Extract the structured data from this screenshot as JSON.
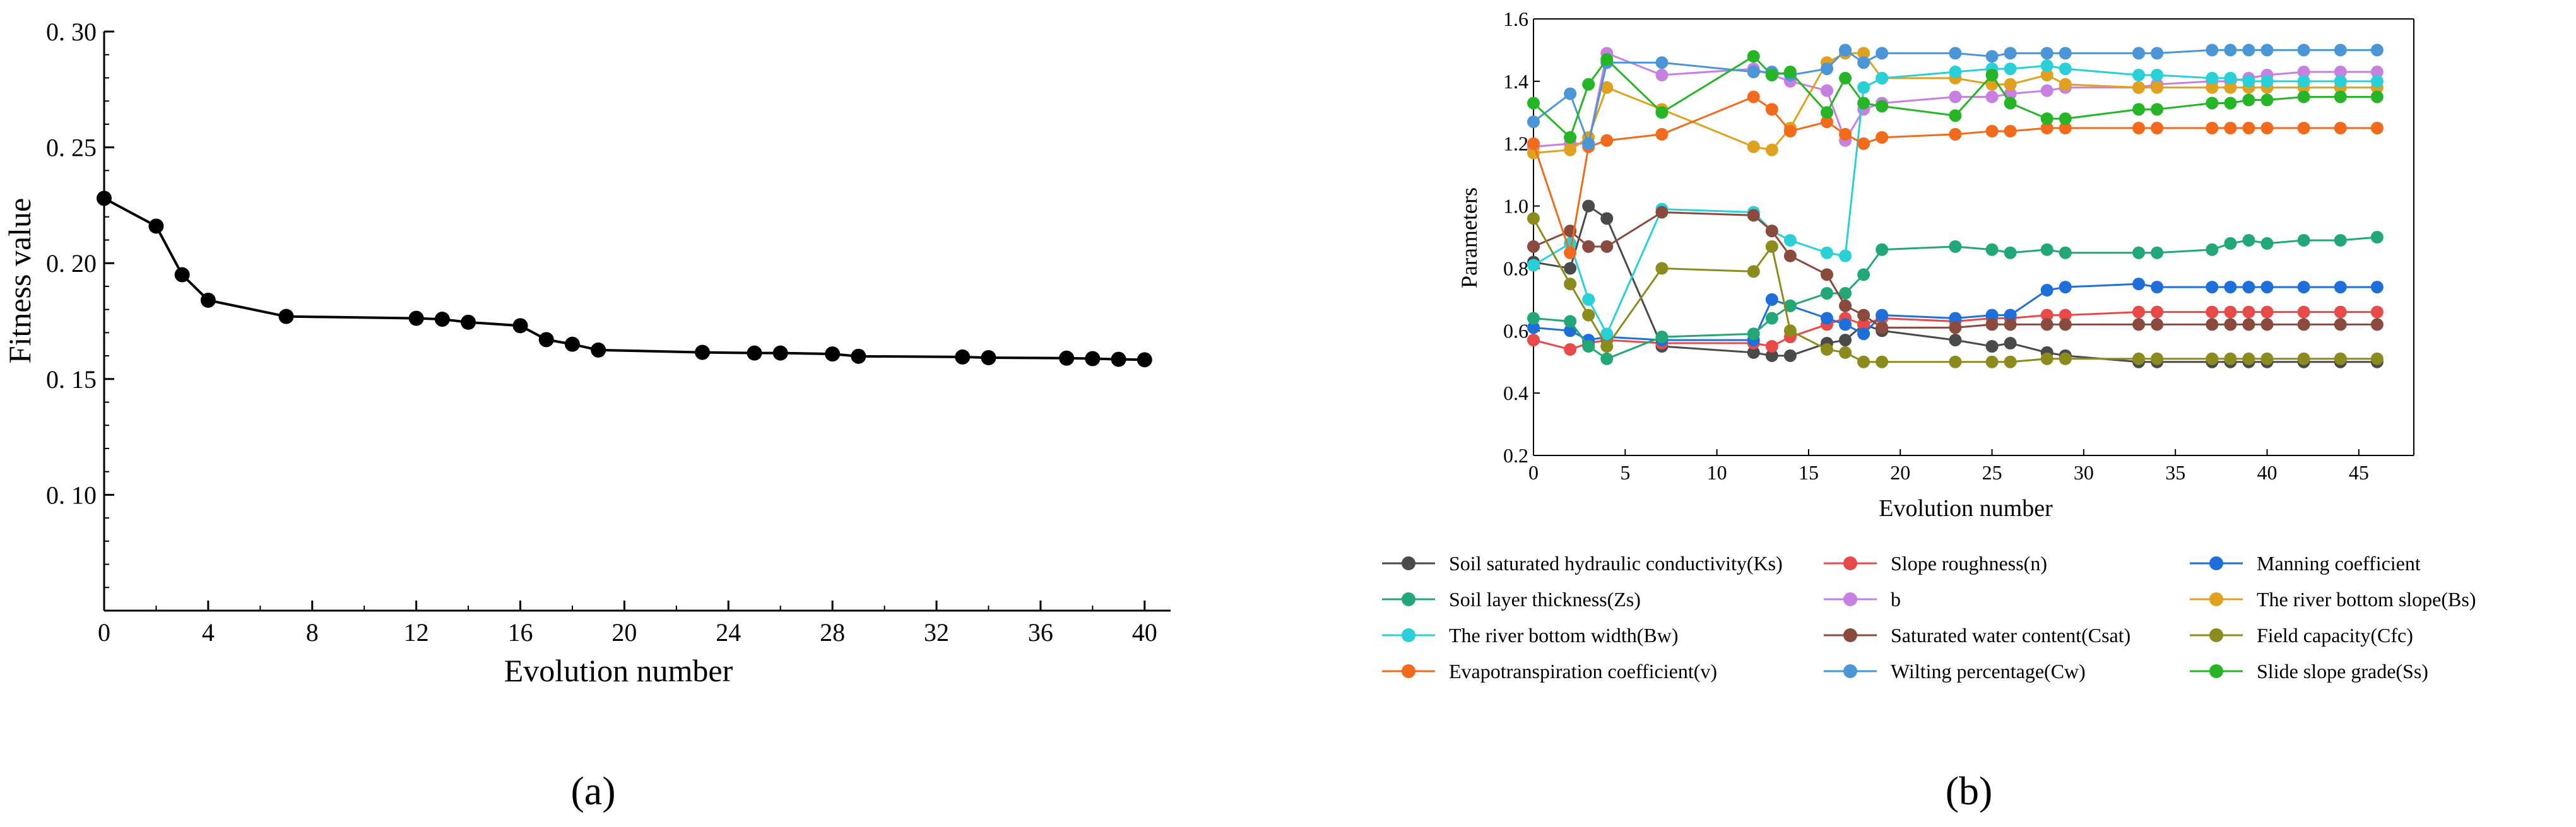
{
  "chart_data": [
    {
      "type": "line",
      "panel_label": "(a)",
      "xlabel": "Evolution number",
      "ylabel": "Fitness value",
      "xlim": [
        0,
        41
      ],
      "ylim": [
        0.05,
        0.3
      ],
      "xticks": [
        0,
        4,
        8,
        12,
        16,
        20,
        24,
        28,
        32,
        36,
        40
      ],
      "yticks": [
        0.1,
        0.15,
        0.2,
        0.25,
        0.3
      ],
      "ytick_labels": [
        "0. 10",
        "0. 15",
        "0. 20",
        "0. 25",
        "0. 30"
      ],
      "series": [
        {
          "name": "Fitness value",
          "color": "#000000",
          "x": [
            0,
            2,
            3,
            4,
            7,
            12,
            13,
            14,
            16,
            17,
            18,
            19,
            23,
            25,
            26,
            28,
            29,
            33,
            34,
            37,
            38,
            39,
            40
          ],
          "values": [
            0.228,
            0.216,
            0.195,
            0.184,
            0.177,
            0.1762,
            0.1758,
            0.1745,
            0.173,
            0.167,
            0.165,
            0.1625,
            0.1615,
            0.1612,
            0.1612,
            0.1608,
            0.1598,
            0.1595,
            0.1592,
            0.159,
            0.1588,
            0.1585,
            0.1583
          ]
        }
      ]
    },
    {
      "type": "line",
      "panel_label": "(b)",
      "xlabel": "Evolution number",
      "ylabel": "Parameters",
      "xlim": [
        0,
        48
      ],
      "ylim": [
        0.2,
        1.6
      ],
      "xticks": [
        0,
        5,
        10,
        15,
        20,
        25,
        30,
        35,
        40,
        45
      ],
      "yticks": [
        0.2,
        0.4,
        0.6,
        0.8,
        1.0,
        1.2,
        1.4,
        1.6
      ],
      "ytick_labels": [
        "0.2",
        "0.4",
        "0.6",
        "0.8",
        "1.0",
        "1.2",
        "1.4",
        "1.6"
      ],
      "x": [
        0,
        2,
        3,
        4,
        7,
        12,
        13,
        14,
        16,
        17,
        18,
        19,
        23,
        25,
        26,
        28,
        29,
        33,
        34,
        37,
        38,
        39,
        40,
        42,
        44,
        46
      ],
      "series": [
        {
          "name": "Soil saturated hydraulic conductivity(Ks)",
          "color": "#4a4a4a",
          "values": [
            0.82,
            0.8,
            1.0,
            0.96,
            0.55,
            0.53,
            0.52,
            0.52,
            0.56,
            0.57,
            0.62,
            0.6,
            0.57,
            0.55,
            0.56,
            0.53,
            0.52,
            0.5,
            0.5,
            0.5,
            0.5,
            0.5,
            0.5,
            0.5,
            0.5,
            0.5
          ]
        },
        {
          "name": "Slope roughness(n)",
          "color": "#e84a4a",
          "values": [
            0.57,
            0.54,
            0.56,
            0.57,
            0.56,
            0.56,
            0.55,
            0.58,
            0.62,
            0.64,
            0.62,
            0.64,
            0.63,
            0.64,
            0.64,
            0.65,
            0.65,
            0.66,
            0.66,
            0.66,
            0.66,
            0.66,
            0.66,
            0.66,
            0.66,
            0.66
          ]
        },
        {
          "name": "Manning coefficient",
          "color": "#1e6fd9",
          "values": [
            0.61,
            0.6,
            0.57,
            0.58,
            0.57,
            0.57,
            0.7,
            0.68,
            0.64,
            0.62,
            0.59,
            0.65,
            0.64,
            0.65,
            0.65,
            0.73,
            0.74,
            0.75,
            0.74,
            0.74,
            0.74,
            0.74,
            0.74,
            0.74,
            0.74,
            0.74
          ]
        },
        {
          "name": "Soil layer thickness(Zs)",
          "color": "#22a877",
          "values": [
            0.64,
            0.63,
            0.55,
            0.51,
            0.58,
            0.59,
            0.64,
            0.68,
            0.72,
            0.72,
            0.78,
            0.86,
            0.87,
            0.86,
            0.85,
            0.86,
            0.85,
            0.85,
            0.85,
            0.86,
            0.88,
            0.89,
            0.88,
            0.89,
            0.89,
            0.9
          ]
        },
        {
          "name": "b",
          "color": "#c77fe0",
          "values": [
            1.19,
            1.2,
            1.2,
            1.49,
            1.42,
            1.44,
            1.42,
            1.4,
            1.37,
            1.21,
            1.31,
            1.33,
            1.35,
            1.35,
            1.36,
            1.37,
            1.38,
            1.38,
            1.39,
            1.4,
            1.4,
            1.41,
            1.42,
            1.43,
            1.43,
            1.43
          ]
        },
        {
          "name": "The river bottom slope(Bs)",
          "color": "#e0a21e",
          "values": [
            1.17,
            1.18,
            1.22,
            1.38,
            1.31,
            1.19,
            1.18,
            1.25,
            1.46,
            1.49,
            1.49,
            1.41,
            1.41,
            1.39,
            1.39,
            1.42,
            1.39,
            1.38,
            1.38,
            1.38,
            1.38,
            1.38,
            1.38,
            1.38,
            1.38,
            1.38
          ]
        },
        {
          "name": "The river bottom width(Bw)",
          "color": "#2ad0d8",
          "values": [
            0.81,
            0.88,
            0.7,
            0.59,
            0.99,
            0.98,
            0.92,
            0.89,
            0.85,
            0.84,
            1.38,
            1.41,
            1.43,
            1.44,
            1.44,
            1.45,
            1.44,
            1.42,
            1.42,
            1.41,
            1.41,
            1.4,
            1.4,
            1.4,
            1.4,
            1.4
          ]
        },
        {
          "name": "Saturated water content(Csat)",
          "color": "#8b4a3e",
          "values": [
            0.87,
            0.92,
            0.87,
            0.87,
            0.98,
            0.97,
            0.92,
            0.84,
            0.78,
            0.68,
            0.65,
            0.61,
            0.61,
            0.62,
            0.62,
            0.62,
            0.62,
            0.62,
            0.62,
            0.62,
            0.62,
            0.62,
            0.62,
            0.62,
            0.62,
            0.62
          ]
        },
        {
          "name": "Field capacity(Cfc)",
          "color": "#8b8b1e",
          "values": [
            0.96,
            0.75,
            0.65,
            0.55,
            0.8,
            0.79,
            0.87,
            0.6,
            0.54,
            0.53,
            0.5,
            0.5,
            0.5,
            0.5,
            0.5,
            0.51,
            0.51,
            0.51,
            0.51,
            0.51,
            0.51,
            0.51,
            0.51,
            0.51,
            0.51,
            0.51
          ]
        },
        {
          "name": "Evapotranspiration coefficient(v)",
          "color": "#f26a1b",
          "values": [
            1.2,
            0.85,
            1.19,
            1.21,
            1.23,
            1.35,
            1.31,
            1.24,
            1.27,
            1.23,
            1.2,
            1.22,
            1.23,
            1.24,
            1.24,
            1.25,
            1.25,
            1.25,
            1.25,
            1.25,
            1.25,
            1.25,
            1.25,
            1.25,
            1.25,
            1.25
          ]
        },
        {
          "name": "Wilting percentage(Cw)",
          "color": "#4a96d6",
          "values": [
            1.27,
            1.36,
            1.2,
            1.46,
            1.46,
            1.43,
            1.43,
            1.42,
            1.44,
            1.5,
            1.46,
            1.49,
            1.49,
            1.48,
            1.49,
            1.49,
            1.49,
            1.49,
            1.49,
            1.5,
            1.5,
            1.5,
            1.5,
            1.5,
            1.5,
            1.5
          ]
        },
        {
          "name": "Slide slope grade(Ss)",
          "color": "#26b526",
          "values": [
            1.33,
            1.22,
            1.39,
            1.47,
            1.3,
            1.48,
            1.42,
            1.43,
            1.3,
            1.41,
            1.33,
            1.32,
            1.29,
            1.42,
            1.33,
            1.28,
            1.28,
            1.31,
            1.31,
            1.33,
            1.33,
            1.34,
            1.34,
            1.35,
            1.35,
            1.35
          ]
        }
      ]
    }
  ]
}
